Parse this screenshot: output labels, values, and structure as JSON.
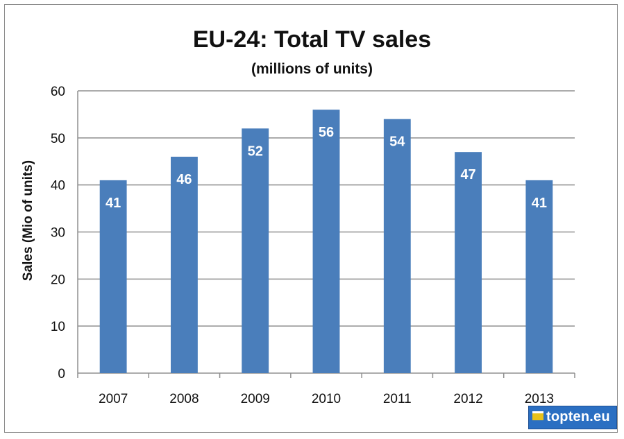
{
  "chart_data": {
    "type": "bar",
    "title": "EU-24: Total TV sales",
    "subtitle": "(millions of units)",
    "xlabel": "",
    "ylabel": "Sales (Mio of units)",
    "categories": [
      "2007",
      "2008",
      "2009",
      "2010",
      "2011",
      "2012",
      "2013"
    ],
    "values": [
      41,
      46,
      52,
      56,
      54,
      47,
      41
    ],
    "data_labels": [
      "41",
      "46",
      "52",
      "56",
      "54",
      "47",
      "41"
    ],
    "ylim": [
      0,
      60
    ],
    "yticks": [
      0,
      10,
      20,
      30,
      40,
      50,
      60
    ],
    "grid": true,
    "bar_color": "#4a7ebb"
  },
  "logo": {
    "text": "topten.eu"
  }
}
